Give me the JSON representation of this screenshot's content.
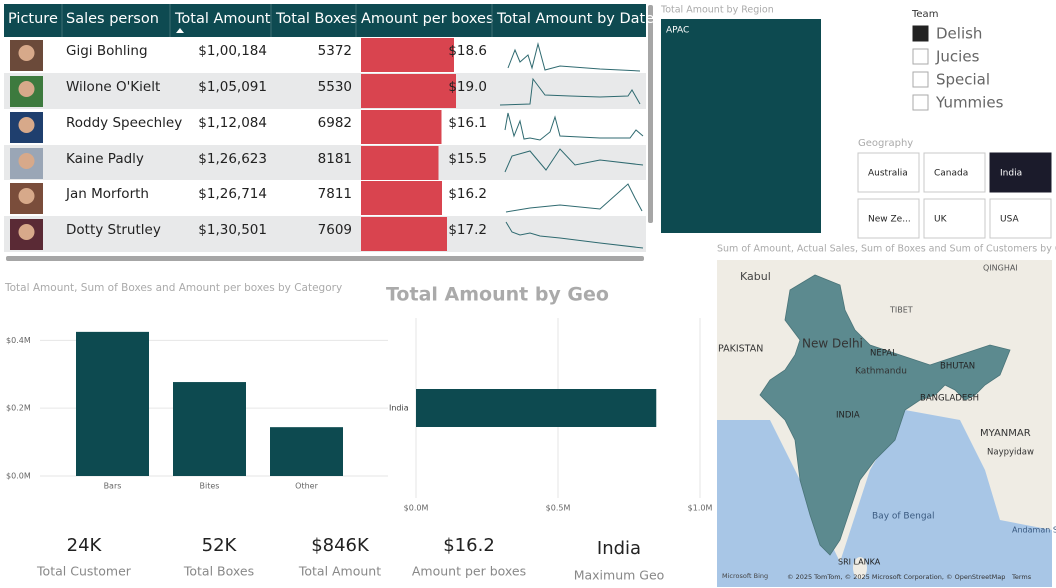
{
  "table": {
    "headers": [
      "Picture",
      "Sales person",
      "Total Amount",
      "Total Boxes",
      "Amount per boxes",
      "Total Amount by Date"
    ],
    "rows": [
      {
        "name": "Gigi Bohling",
        "total_amount": "$1,00,184",
        "total_boxes": 5372,
        "amount_per_box": 18.6,
        "amount_per_box_label": "$18.6"
      },
      {
        "name": "Wilone O'Kielt",
        "total_amount": "$1,05,091",
        "total_boxes": 5530,
        "amount_per_box": 19.0,
        "amount_per_box_label": "$19.0"
      },
      {
        "name": "Roddy Speechley",
        "total_amount": "$1,12,084",
        "total_boxes": 6982,
        "amount_per_box": 16.1,
        "amount_per_box_label": "$16.1"
      },
      {
        "name": "Kaine Padly",
        "total_amount": "$1,26,623",
        "total_boxes": 8181,
        "amount_per_box": 15.5,
        "amount_per_box_label": "$15.5"
      },
      {
        "name": "Jan Morforth",
        "total_amount": "$1,26,714",
        "total_boxes": 7811,
        "amount_per_box": 16.2,
        "amount_per_box_label": "$16.2"
      },
      {
        "name": "Dotty Strutley",
        "total_amount": "$1,30,501",
        "total_boxes": 7609,
        "amount_per_box": 17.2,
        "amount_per_box_label": "$17.2"
      }
    ]
  },
  "region": {
    "title": "Total Amount by Region",
    "tile": "APAC"
  },
  "team": {
    "title": "Team",
    "items": [
      "Delish",
      "Jucies",
      "Special",
      "Yummies"
    ]
  },
  "geography": {
    "title": "Geography",
    "items": [
      "Australia",
      "Canada",
      "India",
      "New Ze...",
      "UK",
      "USA"
    ]
  },
  "map": {
    "title": "Sum of Amount, Actual Sales, Sum of Boxes and Sum of Customers by Geo...",
    "labels": [
      "Kabul",
      "QINGHAI",
      "PAKISTAN",
      "New Delhi",
      "TIBET",
      "NEPAL",
      "Kathmandu",
      "BHUTAN",
      "INDIA",
      "BANGLADESH",
      "MYANMAR",
      "Naypyidaw",
      "Bay of Bengal",
      "Andaman Sea",
      "SRI LANKA"
    ],
    "logo": "Microsoft Bing",
    "copyright": "© 2025 TomTom, © 2025 Microsoft Corporation, © OpenStreetMap",
    "terms": "Terms"
  },
  "chart_data": [
    {
      "type": "bar",
      "title": "Total Amount, Sum of Boxes and Amount per boxes by Category",
      "categories": [
        "Bars",
        "Bites",
        "Other"
      ],
      "values": [
        425000,
        277000,
        144000
      ],
      "color": "#0d4a50",
      "ylim": [
        0,
        460000
      ],
      "yticks": [
        {
          "value": 0,
          "label": "$0.0M"
        },
        {
          "value": 200000,
          "label": "$0.2M"
        },
        {
          "value": 400000,
          "label": "$0.4M"
        }
      ],
      "grid": true
    },
    {
      "type": "hbar",
      "title": "Total Amount by Geo",
      "categories": [
        "India"
      ],
      "values": [
        846000
      ],
      "color": "#0d4a50",
      "xlim": [
        0,
        1000000
      ],
      "xticks": [
        {
          "value": 0,
          "label": "$0.0M"
        },
        {
          "value": 500000,
          "label": "$0.5M"
        },
        {
          "value": 1000000,
          "label": "$1.0M"
        }
      ],
      "grid": true
    }
  ],
  "cards": [
    {
      "value": "24K",
      "label": "Total Customer"
    },
    {
      "value": "52K",
      "label": "Total Boxes"
    },
    {
      "value": "$846K",
      "label": "Total Amount"
    },
    {
      "value": "$16.2",
      "label": "Amount per boxes"
    },
    {
      "value": "India",
      "label": "Maximum Geo"
    }
  ]
}
